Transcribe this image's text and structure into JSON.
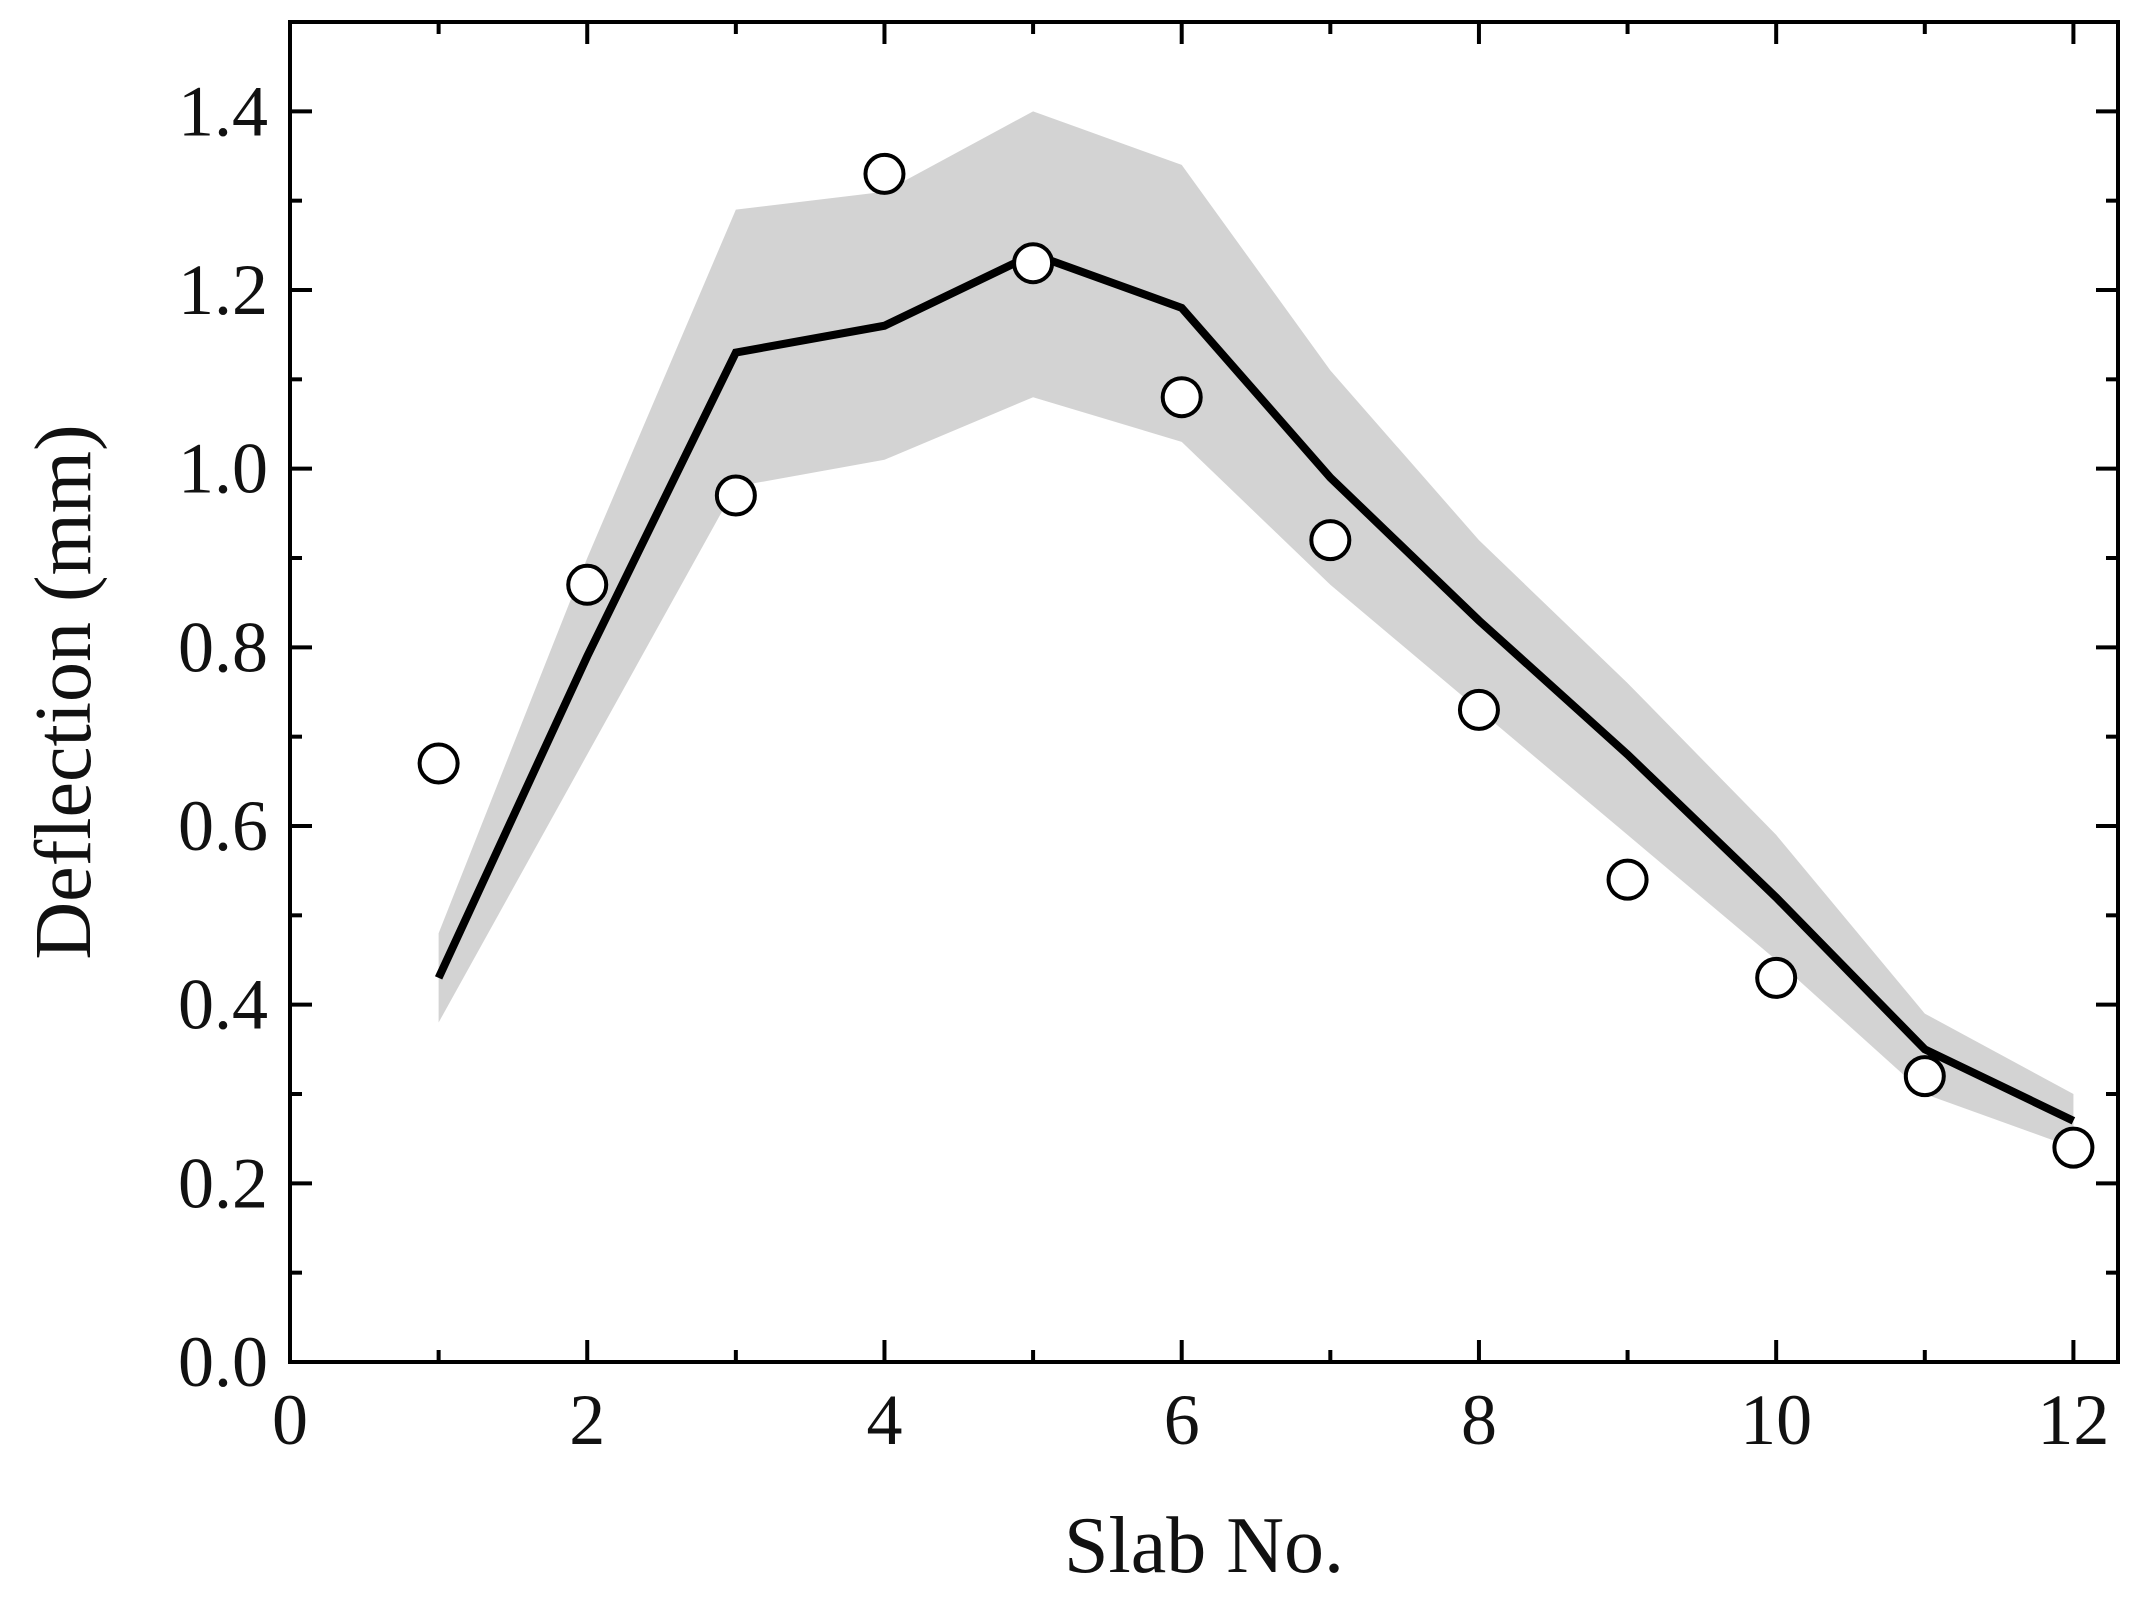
{
  "chart_data": {
    "type": "line",
    "xlabel": "Slab No.",
    "ylabel": "Deflection (mm)",
    "xlim": [
      0,
      12.3
    ],
    "ylim": [
      0,
      1.5
    ],
    "xticks": [
      0,
      2,
      4,
      6,
      8,
      10,
      12
    ],
    "xtick_labels": [
      "0",
      "2",
      "4",
      "6",
      "8",
      "10",
      "12"
    ],
    "yticks": [
      0.0,
      0.2,
      0.4,
      0.6,
      0.8,
      1.0,
      1.2,
      1.4
    ],
    "ytick_labels": [
      "0.0",
      "0.2",
      "0.4",
      "0.6",
      "0.8",
      "1.0",
      "1.2",
      "1.4"
    ],
    "grid": false,
    "series": [
      {
        "kind": "band",
        "x": [
          1,
          2,
          3,
          4,
          5,
          6,
          7,
          8,
          9,
          10,
          11,
          12
        ],
        "upper": [
          0.48,
          0.9,
          1.29,
          1.31,
          1.4,
          1.34,
          1.11,
          0.92,
          0.76,
          0.59,
          0.39,
          0.3
        ],
        "lower": [
          0.38,
          0.68,
          0.98,
          1.01,
          1.08,
          1.03,
          0.87,
          0.73,
          0.59,
          0.45,
          0.3,
          0.24
        ],
        "color": "#d3d3d3"
      },
      {
        "kind": "line",
        "x": [
          1,
          2,
          3,
          4,
          5,
          6,
          7,
          8,
          9,
          10,
          11,
          12
        ],
        "y": [
          0.43,
          0.79,
          1.13,
          1.16,
          1.24,
          1.18,
          0.99,
          0.83,
          0.68,
          0.52,
          0.35,
          0.27
        ],
        "color": "#000000"
      },
      {
        "kind": "scatter",
        "marker": "open-circle",
        "x": [
          1,
          2,
          3,
          4,
          5,
          6,
          7,
          8,
          9,
          10,
          11,
          12
        ],
        "y": [
          0.67,
          0.87,
          0.97,
          1.33,
          1.23,
          1.08,
          0.92,
          0.73,
          0.54,
          0.43,
          0.32,
          0.24
        ],
        "color": "#000000"
      }
    ]
  }
}
